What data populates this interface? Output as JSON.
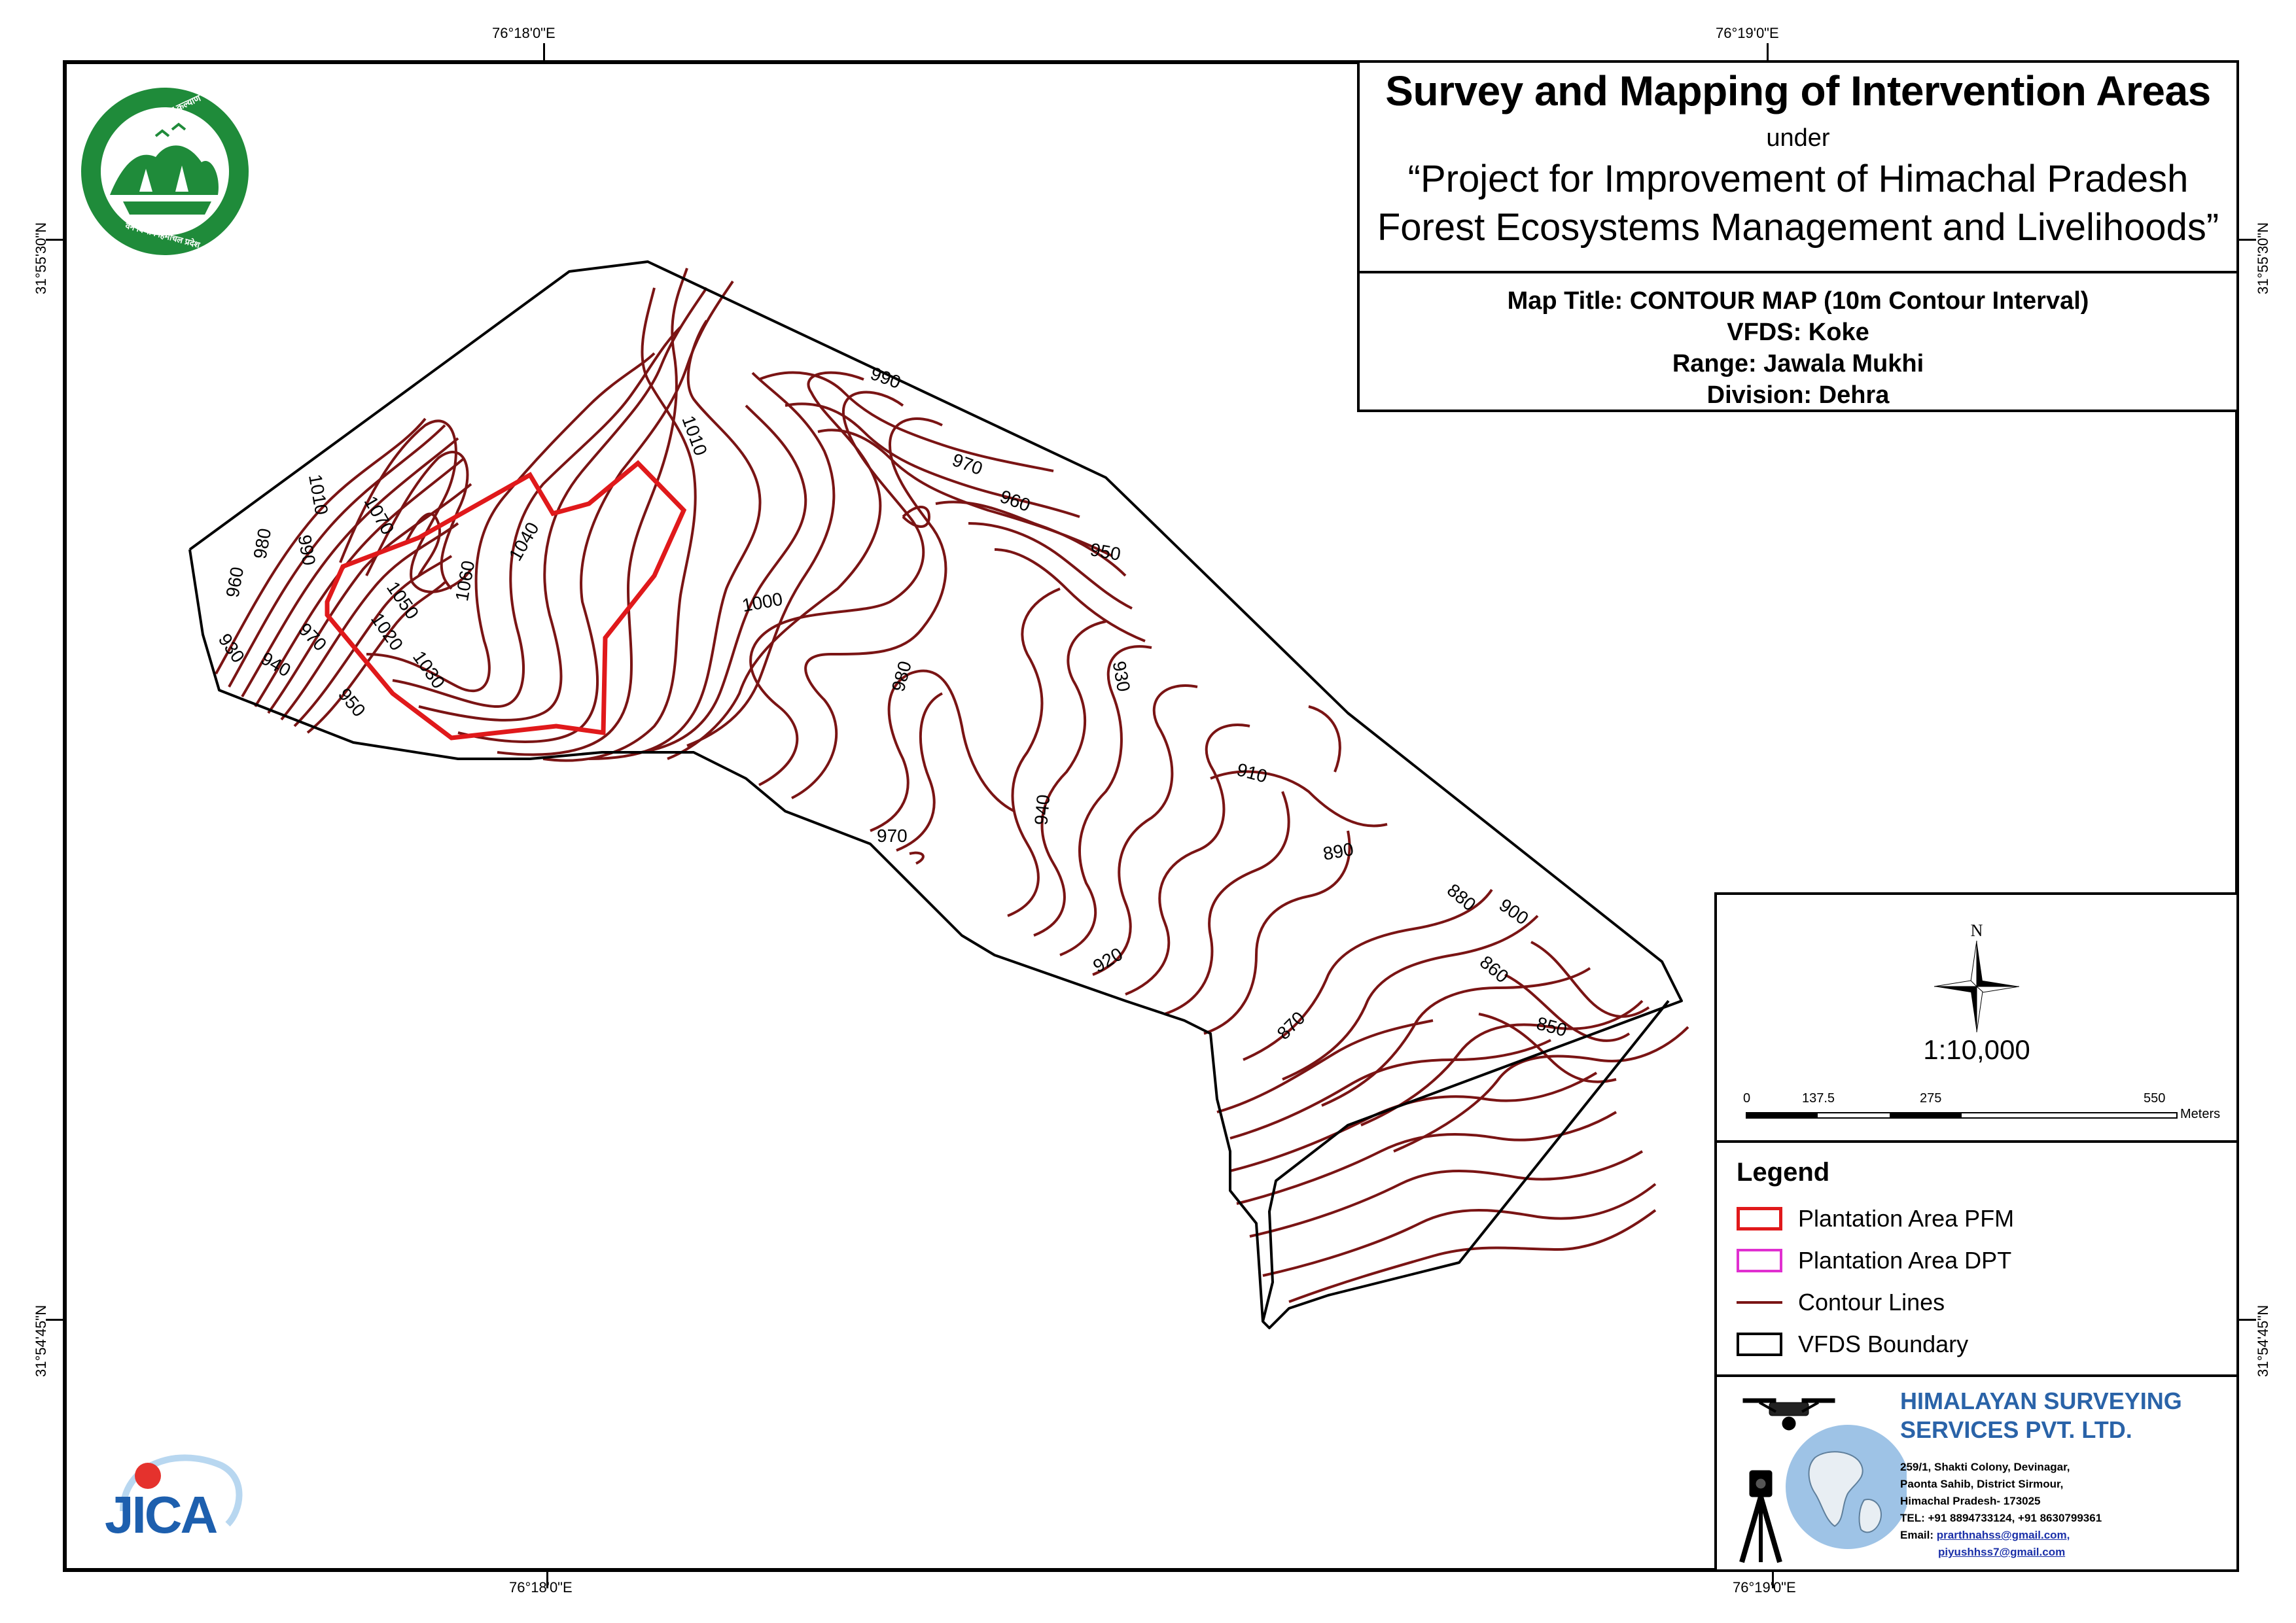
{
  "coordinates": {
    "top_left_lon": "76°18'0\"E",
    "top_right_lon": "76°19'0\"E",
    "bottom_left_lon": "76°18'0\"E",
    "bottom_right_lon": "76°19'0\"E",
    "left_top_lat": "31°55'30\"N",
    "left_bottom_lat": "31°54'45\"N",
    "right_top_lat": "31°55'30\"N",
    "right_bottom_lat": "31°54'45\"N"
  },
  "title": {
    "main": "Survey and Mapping of Intervention Areas",
    "under": "under",
    "project_line1": "“Project for Improvement of Himachal Pradesh",
    "project_line2": "Forest Ecosystems Management and Livelihoods”",
    "map_title": "Map Title: CONTOUR MAP (10m Contour Interval)",
    "vfds": "VFDS: Koke",
    "range": "Range: Jawala Mukhi",
    "division": "Division: Dehra"
  },
  "north_arrow": {
    "label": "N",
    "icon": "north-arrow-icon"
  },
  "scale": {
    "ratio": "1:10,000",
    "ticks": [
      "0",
      "137.5",
      "275",
      "550"
    ],
    "unit": "Meters"
  },
  "legend": {
    "title": "Legend",
    "items": [
      {
        "label": "Plantation Area PFM",
        "color": "#e0191b"
      },
      {
        "label": "Plantation Area DPT",
        "color": "#e02fd0"
      },
      {
        "label": "Contour Lines",
        "color": "#7a1414"
      },
      {
        "label": "VFDS Boundary",
        "color": "#000000"
      }
    ]
  },
  "company": {
    "name_line1": "HIMALAYAN SURVEYING",
    "name_line2": "SERVICES PVT. LTD.",
    "address1": "259/1, Shakti Colony, Devinagar,",
    "address2": "Paonta Sahib, District Sirmour,",
    "address3": "Himachal Pradesh- 173025",
    "tel": "TEL: +91 8894733124, +91 8630799361",
    "email_label": "Email:",
    "email1": "prarthnahss@gmail.com,",
    "email2": "piyushhss7@gmail.com"
  },
  "logos": {
    "forest_dept": "forest-department-logo",
    "forest_dept_top_text": "वन श्री त्राण, विश्व कल्याण",
    "forest_dept_bottom_text": "वन विभाग हिमाचल प्रदेश",
    "jica": "JICA",
    "colors": {
      "forest_green": "#1f8b3a",
      "jica_blue": "#1d5fae",
      "jica_red": "#e5322d"
    }
  },
  "contour_labels": [
    "990",
    "1010",
    "970",
    "960",
    "950",
    "1000",
    "980",
    "930",
    "910",
    "890",
    "880",
    "900",
    "860",
    "850",
    "870",
    "920",
    "940",
    "970",
    "1070",
    "1040",
    "1060",
    "1050",
    "1020",
    "1030",
    "1010",
    "990",
    "980",
    "960",
    "970",
    "930",
    "940",
    "950"
  ]
}
